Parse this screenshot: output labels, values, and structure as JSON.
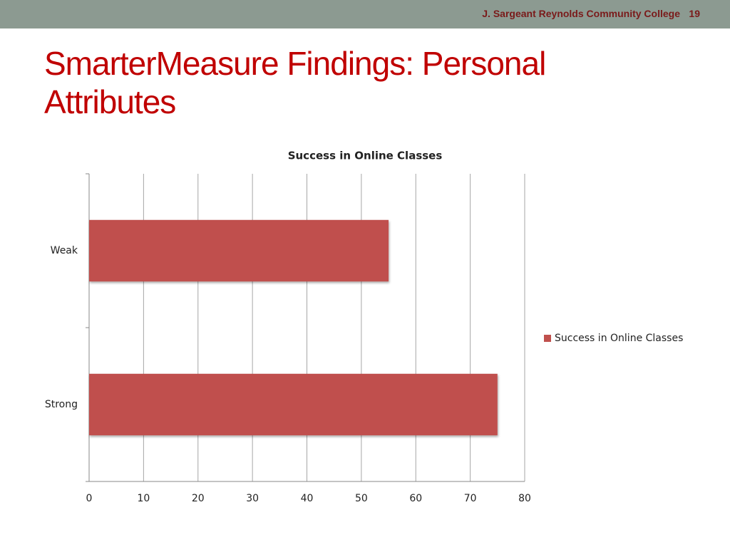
{
  "header": {
    "organization": "J. Sargeant Reynolds Community College",
    "slide_number": "19"
  },
  "slide_title": "SmarterMeasure Findings: Personal Attributes",
  "chart_data": {
    "type": "hbar",
    "title": "Success in Online Classes",
    "categories": [
      "Weak",
      "Strong"
    ],
    "series": [
      {
        "name": "Success in Online Classes",
        "color": "#c0504d",
        "values": [
          55,
          75
        ]
      }
    ],
    "xlim": [
      0,
      80
    ],
    "xticks": [
      0,
      10,
      20,
      30,
      40,
      50,
      60,
      70,
      80
    ],
    "grid": true,
    "legend": "right"
  }
}
